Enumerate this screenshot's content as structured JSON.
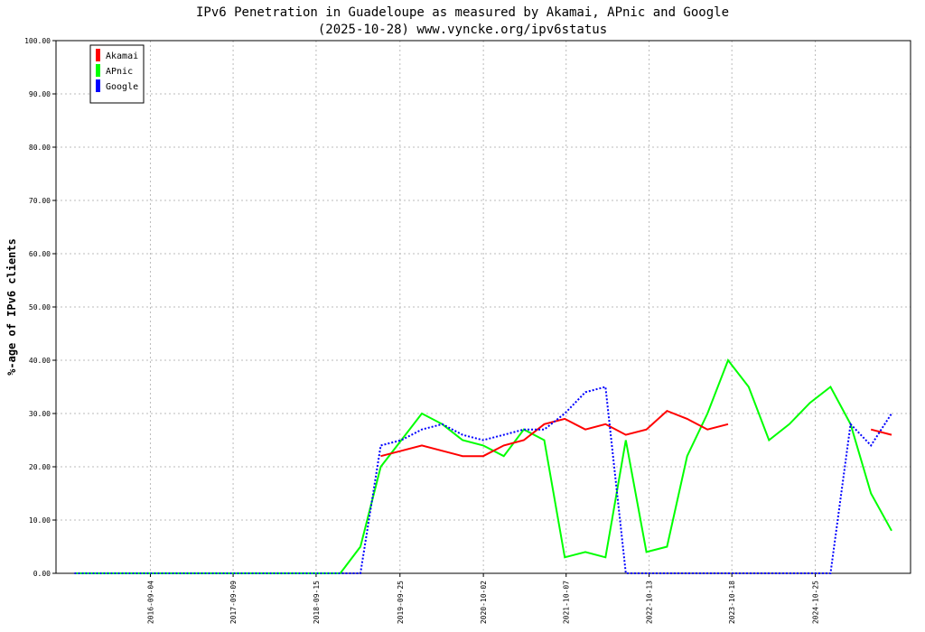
{
  "chart_data": {
    "type": "line",
    "title": "IPv6 Penetration in Guadeloupe as measured by Akamai, APnic and Google",
    "subtitle": "(2025-10-28) www.vyncke.org/ipv6status",
    "y_label": "%-age of IPv6 clients",
    "x": [
      "2015-10-01",
      "2016-01-01",
      "2016-04-01",
      "2016-07-01",
      "2016-10-01",
      "2017-01-01",
      "2017-04-01",
      "2017-07-01",
      "2017-10-01",
      "2018-01-01",
      "2018-04-01",
      "2018-07-01",
      "2018-10-01",
      "2019-01-01",
      "2019-04-01",
      "2019-07-01",
      "2019-10-01",
      "2020-01-01",
      "2020-04-01",
      "2020-07-01",
      "2020-10-01",
      "2021-01-01",
      "2021-04-01",
      "2021-07-01",
      "2021-10-01",
      "2022-01-01",
      "2022-04-01",
      "2022-07-01",
      "2022-10-01",
      "2023-01-01",
      "2023-04-01",
      "2023-07-01",
      "2023-10-01",
      "2024-01-01",
      "2024-04-01",
      "2024-07-01",
      "2024-10-01",
      "2025-01-01",
      "2025-04-01",
      "2025-07-01",
      "2025-10-01"
    ],
    "series": [
      {
        "name": "Akamai",
        "color": "#ff0000",
        "style": "solid",
        "values": [
          null,
          null,
          null,
          null,
          null,
          null,
          null,
          null,
          null,
          null,
          null,
          null,
          null,
          null,
          null,
          22,
          23,
          24,
          23,
          22,
          22,
          24,
          25,
          28,
          29,
          27,
          28,
          26,
          27,
          30.5,
          29,
          27,
          28,
          null,
          null,
          null,
          null,
          null,
          null,
          27,
          26
        ]
      },
      {
        "name": "APnic",
        "color": "#00ff00",
        "style": "solid",
        "values": [
          0,
          0,
          0,
          0,
          0,
          0,
          0,
          0,
          0,
          0,
          0,
          0,
          0,
          0,
          5,
          20,
          25,
          30,
          28,
          25,
          24,
          22,
          27,
          25,
          3,
          4,
          3,
          25,
          4,
          5,
          22,
          30,
          40,
          35,
          25,
          28,
          32,
          35,
          28,
          15,
          8
        ]
      },
      {
        "name": "Google",
        "color": "#0000ff",
        "style": "dotted",
        "values": [
          0,
          0,
          0,
          0,
          0,
          0,
          0,
          0,
          0,
          0,
          0,
          0,
          0,
          0,
          0,
          24,
          25,
          27,
          28,
          26,
          25,
          26,
          27,
          27,
          30,
          34,
          35,
          0,
          0,
          0,
          0,
          0,
          0,
          0,
          0,
          0,
          0,
          0,
          28,
          24,
          30
        ]
      }
    ],
    "xlim": [
      "2015-07-10",
      "2025-12-25"
    ],
    "xticks": [
      "2016-09-04",
      "2017-09-09",
      "2018-09-15",
      "2019-09-25",
      "2020-10-02",
      "2021-10-07",
      "2022-10-13",
      "2023-10-18",
      "2024-10-25"
    ],
    "ylim": [
      0,
      100
    ],
    "yticks": [
      {
        "value": 0,
        "label": "0.00"
      },
      {
        "value": 10,
        "label": "10.00"
      },
      {
        "value": 20,
        "label": "20.00"
      },
      {
        "value": 30,
        "label": "30.00"
      },
      {
        "value": 40,
        "label": "40.00"
      },
      {
        "value": 50,
        "label": "50.00"
      },
      {
        "value": 60,
        "label": "60.00"
      },
      {
        "value": 70,
        "label": "70.00"
      },
      {
        "value": 80,
        "label": "80.00"
      },
      {
        "value": 90,
        "label": "90.00"
      },
      {
        "value": 100,
        "label": "100.00"
      }
    ],
    "grid": true,
    "legend": "top-left"
  }
}
